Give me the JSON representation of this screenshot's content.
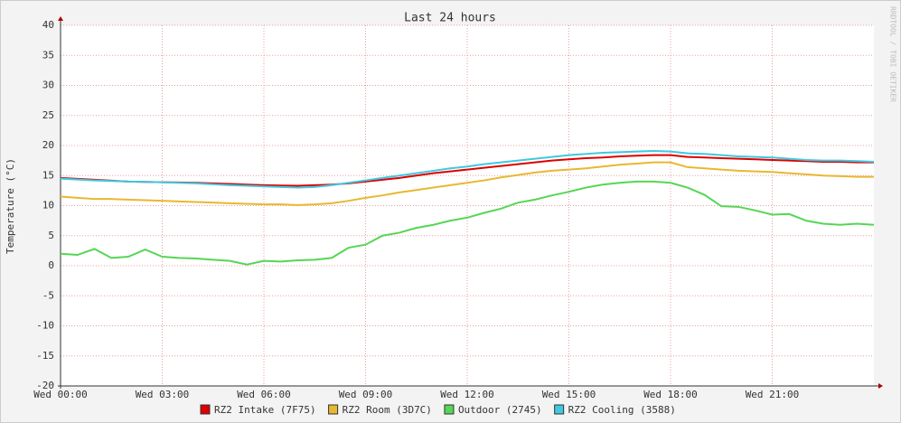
{
  "chart_data": {
    "type": "line",
    "title": "Last 24 hours",
    "y_label": "Temperature (°C)",
    "watermark": "RRDTOOL / TOBI OETIKER",
    "xlim": [
      0,
      24
    ],
    "xticks": [
      {
        "value": 0,
        "label": "Wed 00:00"
      },
      {
        "value": 3,
        "label": "Wed 03:00"
      },
      {
        "value": 6,
        "label": "Wed 06:00"
      },
      {
        "value": 9,
        "label": "Wed 09:00"
      },
      {
        "value": 12,
        "label": "Wed 12:00"
      },
      {
        "value": 15,
        "label": "Wed 15:00"
      },
      {
        "value": 18,
        "label": "Wed 18:00"
      },
      {
        "value": 21,
        "label": "Wed 21:00"
      }
    ],
    "ylim": [
      -20,
      40
    ],
    "yticks": [
      -20,
      -15,
      -10,
      -5,
      0,
      5,
      10,
      15,
      20,
      25,
      30,
      35,
      40
    ],
    "grid": true,
    "x": [
      0,
      0.5,
      1,
      1.5,
      2,
      2.5,
      3,
      3.5,
      4,
      4.5,
      5,
      5.5,
      6,
      6.5,
      7,
      7.5,
      8,
      8.5,
      9,
      9.5,
      10,
      10.5,
      11,
      11.5,
      12,
      12.5,
      13,
      13.5,
      14,
      14.5,
      15,
      15.5,
      16,
      16.5,
      17,
      17.5,
      18,
      18.5,
      19,
      19.5,
      20,
      20.5,
      21,
      21.5,
      22,
      22.5,
      23,
      23.5,
      24
    ],
    "series": [
      {
        "name": "RZ2 Intake (7F75)",
        "color": "#dd0000",
        "values": [
          14.6,
          14.45,
          14.3,
          14.15,
          14.0,
          13.95,
          13.9,
          13.85,
          13.8,
          13.7,
          13.6,
          13.5,
          13.4,
          13.35,
          13.3,
          13.4,
          13.5,
          13.7,
          14.0,
          14.3,
          14.6,
          15.0,
          15.4,
          15.7,
          16.0,
          16.3,
          16.6,
          16.9,
          17.2,
          17.5,
          17.7,
          17.9,
          18.0,
          18.2,
          18.3,
          18.4,
          18.4,
          18.1,
          18.0,
          17.9,
          17.8,
          17.7,
          17.6,
          17.5,
          17.4,
          17.3,
          17.3,
          17.2,
          17.2
        ]
      },
      {
        "name": "RZ2 Room (3D7C)",
        "color": "#e8b830",
        "values": [
          11.5,
          11.3,
          11.1,
          11.1,
          11.0,
          10.9,
          10.8,
          10.7,
          10.6,
          10.5,
          10.4,
          10.3,
          10.2,
          10.2,
          10.1,
          10.2,
          10.4,
          10.8,
          11.3,
          11.7,
          12.2,
          12.6,
          13.0,
          13.4,
          13.8,
          14.2,
          14.7,
          15.1,
          15.5,
          15.8,
          16.0,
          16.2,
          16.5,
          16.8,
          17.0,
          17.2,
          17.2,
          16.4,
          16.2,
          16.0,
          15.8,
          15.7,
          15.6,
          15.4,
          15.2,
          15.0,
          14.9,
          14.8,
          14.8
        ]
      },
      {
        "name": "Outdoor (2745)",
        "color": "#55d655",
        "values": [
          2.0,
          1.8,
          2.8,
          1.3,
          1.5,
          2.7,
          1.5,
          1.3,
          1.2,
          1.0,
          0.8,
          0.2,
          0.8,
          0.7,
          0.9,
          1.0,
          1.3,
          3.0,
          3.5,
          5.0,
          5.5,
          6.3,
          6.8,
          7.5,
          8.0,
          8.8,
          9.5,
          10.5,
          11.0,
          11.7,
          12.3,
          13.0,
          13.5,
          13.8,
          14.0,
          14.0,
          13.8,
          13.0,
          11.8,
          9.9,
          9.8,
          9.2,
          8.5,
          8.6,
          7.5,
          7.0,
          6.8,
          7.0,
          6.8
        ]
      },
      {
        "name": "RZ2 Cooling (3588)",
        "color": "#40c8e0",
        "values": [
          14.5,
          14.35,
          14.2,
          14.1,
          14.0,
          13.95,
          13.9,
          13.8,
          13.7,
          13.55,
          13.4,
          13.3,
          13.2,
          13.1,
          13.0,
          13.1,
          13.4,
          13.8,
          14.2,
          14.6,
          15.0,
          15.4,
          15.8,
          16.2,
          16.5,
          16.9,
          17.2,
          17.5,
          17.8,
          18.1,
          18.4,
          18.6,
          18.8,
          18.9,
          19.0,
          19.1,
          19.0,
          18.7,
          18.6,
          18.4,
          18.2,
          18.1,
          18.0,
          17.8,
          17.6,
          17.5,
          17.5,
          17.4,
          17.3
        ]
      }
    ]
  }
}
